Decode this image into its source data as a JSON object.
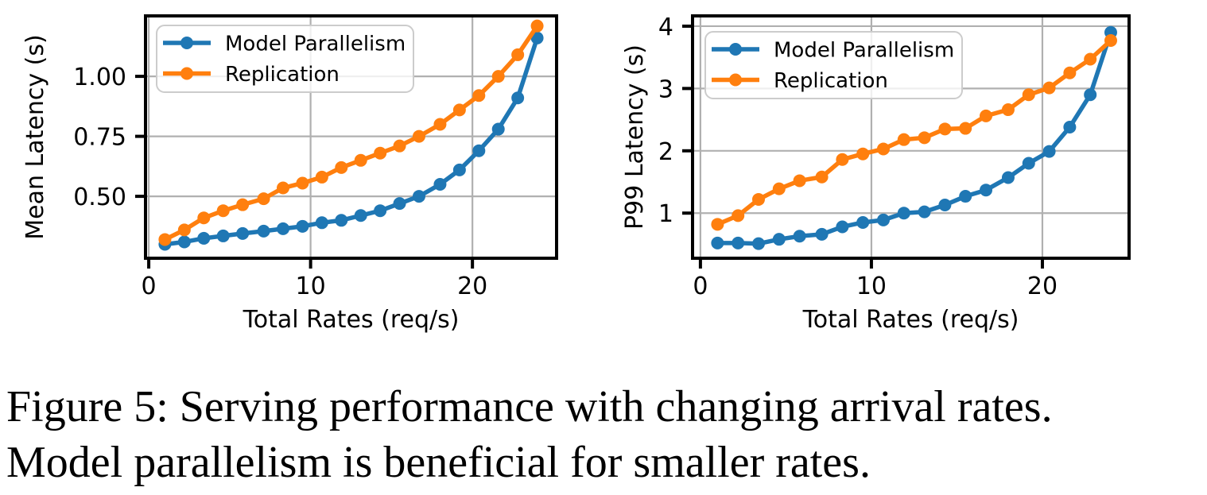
{
  "page": {
    "background": "#ffffff"
  },
  "caption": {
    "line1": "Figure 5: Serving performance with changing arrival rates.",
    "line2": "Model parallelism is beneficial for smaller rates."
  },
  "colors": {
    "model_parallelism": "#1f77b4",
    "replication": "#ff7f0e",
    "grid": "#b0b0b0",
    "axis": "#000000",
    "legend_border": "#cccccc",
    "legend_fill": "#ffffff"
  },
  "chart_data": [
    {
      "type": "line",
      "title": "",
      "xlabel": "Total Rates (req/s)",
      "ylabel": "Mean Latency (s)",
      "xlim": [
        -0.2,
        25.2
      ],
      "ylim": [
        0.242,
        1.252
      ],
      "xticks": [
        0,
        10,
        20
      ],
      "xtick_labels": [
        "0",
        "10",
        "20"
      ],
      "yticks": [
        0.5,
        0.75,
        1.0
      ],
      "ytick_labels": [
        "0.50",
        "0.75",
        "1.00"
      ],
      "grid": true,
      "legend_position": "upper left",
      "x": [
        1.0,
        2.2,
        3.4,
        4.6,
        5.8,
        7.1,
        8.3,
        9.5,
        10.7,
        11.9,
        13.1,
        14.3,
        15.5,
        16.7,
        18.0,
        19.2,
        20.4,
        21.6,
        22.8,
        24.0
      ],
      "series": [
        {
          "name": "Model Parallelism",
          "color": "#1f77b4",
          "marker": "circle",
          "values": [
            0.3,
            0.31,
            0.325,
            0.335,
            0.345,
            0.355,
            0.365,
            0.375,
            0.39,
            0.4,
            0.42,
            0.44,
            0.47,
            0.5,
            0.55,
            0.61,
            0.69,
            0.78,
            0.91,
            1.16
          ]
        },
        {
          "name": "Replication",
          "color": "#ff7f0e",
          "marker": "circle",
          "values": [
            0.32,
            0.36,
            0.41,
            0.44,
            0.465,
            0.49,
            0.535,
            0.555,
            0.58,
            0.62,
            0.65,
            0.68,
            0.71,
            0.75,
            0.8,
            0.86,
            0.92,
            1.0,
            1.09,
            1.21
          ]
        }
      ]
    },
    {
      "type": "line",
      "title": "",
      "xlabel": "Total Rates (req/s)",
      "ylabel": "P99 Latency (s)",
      "xlim": [
        -0.46,
        25.07
      ],
      "ylim": [
        0.276,
        4.165
      ],
      "xticks": [
        0,
        10,
        20
      ],
      "xtick_labels": [
        "0",
        "10",
        "20"
      ],
      "yticks": [
        1,
        2,
        3,
        4
      ],
      "ytick_labels": [
        "1",
        "2",
        "3",
        "4"
      ],
      "grid": true,
      "legend_position": "upper left",
      "x": [
        1.0,
        2.2,
        3.4,
        4.6,
        5.8,
        7.1,
        8.3,
        9.5,
        10.7,
        11.9,
        13.1,
        14.3,
        15.5,
        16.7,
        18.0,
        19.2,
        20.4,
        21.6,
        22.8,
        24.0
      ],
      "series": [
        {
          "name": "Model Parallelism",
          "color": "#1f77b4",
          "marker": "circle",
          "values": [
            0.52,
            0.52,
            0.51,
            0.58,
            0.63,
            0.66,
            0.78,
            0.85,
            0.89,
            1.0,
            1.02,
            1.13,
            1.27,
            1.37,
            1.57,
            1.8,
            1.99,
            2.38,
            2.9,
            3.9
          ]
        },
        {
          "name": "Replication",
          "color": "#ff7f0e",
          "marker": "circle",
          "values": [
            0.82,
            0.96,
            1.22,
            1.39,
            1.52,
            1.58,
            1.86,
            1.95,
            2.03,
            2.18,
            2.21,
            2.35,
            2.36,
            2.56,
            2.66,
            2.9,
            3.01,
            3.25,
            3.47,
            3.77
          ]
        }
      ]
    }
  ]
}
